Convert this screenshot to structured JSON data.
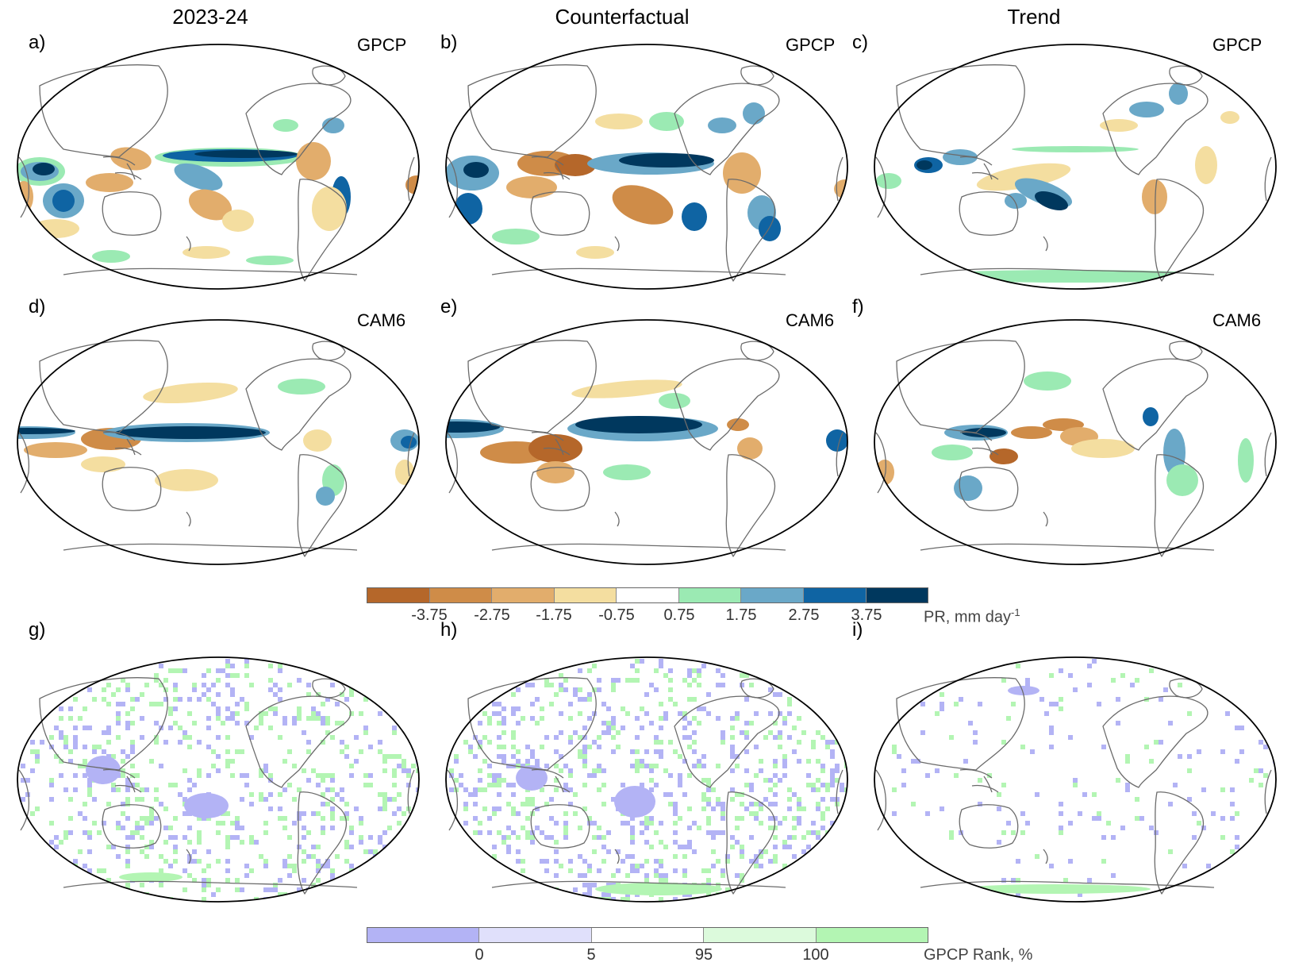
{
  "columns": [
    "2023-24",
    "Counterfactual",
    "Trend"
  ],
  "panels": [
    {
      "label": "a)",
      "source": "GPCP"
    },
    {
      "label": "b)",
      "source": "GPCP"
    },
    {
      "label": "c)",
      "source": "GPCP"
    },
    {
      "label": "d)",
      "source": "CAM6"
    },
    {
      "label": "e)",
      "source": "CAM6"
    },
    {
      "label": "f)",
      "source": "CAM6"
    },
    {
      "label": "g)",
      "source": ""
    },
    {
      "label": "h)",
      "source": ""
    },
    {
      "label": "i)",
      "source": ""
    }
  ],
  "colorbar_pr": {
    "colors": [
      "#b5672a",
      "#cf8c48",
      "#e2ad6c",
      "#f4dea0",
      "#ffffff",
      "#9beab3",
      "#6aa8c8",
      "#0f64a3",
      "#00385e"
    ],
    "ticks": [
      "-3.75",
      "-2.75",
      "-1.75",
      "-0.75",
      "0.75",
      "1.75",
      "2.75",
      "3.75"
    ],
    "title_main": "PR, mm day",
    "title_sup": "-1"
  },
  "colorbar_rank": {
    "colors": [
      "#b3b3f5",
      "#e0e0fb",
      "#ffffff",
      "#dcfadc",
      "#b3f5b3"
    ],
    "ticks": [
      "0",
      "5",
      "95",
      "100"
    ],
    "title": "GPCP Rank, %"
  },
  "chart_data": {
    "type": "heatmap",
    "description_variable": "PR anomaly (mm day-1) and GPCP Rank (%)",
    "pr_levels": [
      -3.75,
      -2.75,
      -1.75,
      -0.75,
      0.75,
      1.75,
      2.75,
      3.75
    ],
    "rank_levels": [
      0,
      5,
      95,
      100
    ]
  }
}
